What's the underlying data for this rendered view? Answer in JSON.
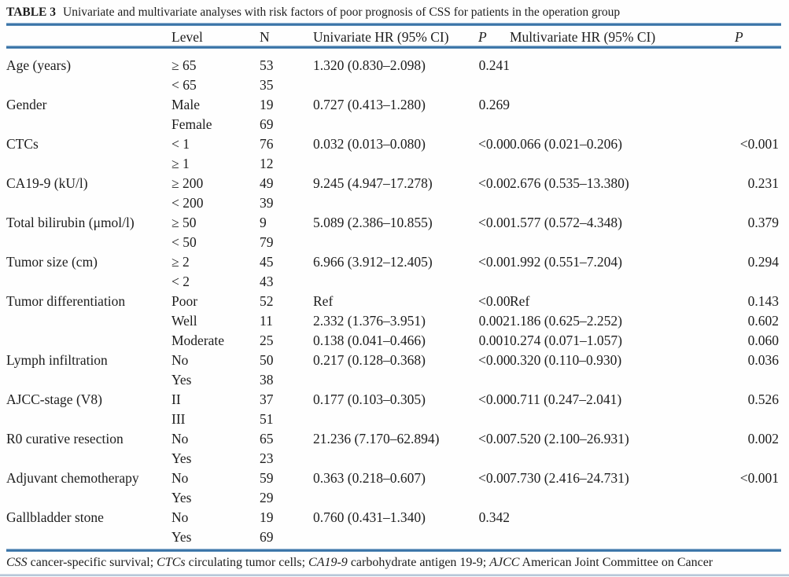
{
  "title": {
    "label": "TABLE 3",
    "text": "Univariate and multivariate analyses with risk factors of poor prognosis of CSS for patients in the operation group"
  },
  "table": {
    "headers": {
      "factor": "",
      "level": "Level",
      "n": "N",
      "uni_hr": "Univariate HR (95% CI)",
      "uni_p": "P",
      "multi_hr": "Multivariate HR (95% CI)",
      "multi_p": "P"
    },
    "rows": [
      {
        "factor": "Age (years)",
        "level": "≥ 65",
        "n": "53",
        "uni_hr": "1.320 (0.830–2.098)",
        "uni_p": "0.241",
        "multi_hr": "",
        "multi_p": ""
      },
      {
        "factor": "",
        "level": "< 65",
        "n": "35",
        "uni_hr": "",
        "uni_p": "",
        "multi_hr": "",
        "multi_p": ""
      },
      {
        "factor": "Gender",
        "level": "Male",
        "n": "19",
        "uni_hr": "0.727 (0.413–1.280)",
        "uni_p": "0.269",
        "multi_hr": "",
        "multi_p": ""
      },
      {
        "factor": "",
        "level": "Female",
        "n": "69",
        "uni_hr": "",
        "uni_p": "",
        "multi_hr": "",
        "multi_p": ""
      },
      {
        "factor": "CTCs",
        "level": "< 1",
        "n": "76",
        "uni_hr": "0.032 (0.013–0.080)",
        "uni_p": "<0.001",
        "multi_hr": "0.066 (0.021–0.206)",
        "multi_p": "<0.001"
      },
      {
        "factor": "",
        "level": "≥ 1",
        "n": "12",
        "uni_hr": "",
        "uni_p": "",
        "multi_hr": "",
        "multi_p": ""
      },
      {
        "factor": "CA19-9 (kU/l)",
        "level": "≥ 200",
        "n": "49",
        "uni_hr": "9.245 (4.947–17.278)",
        "uni_p": "<0.001",
        "multi_hr": "2.676 (0.535–13.380)",
        "multi_p": "0.231"
      },
      {
        "factor": "",
        "level": "< 200",
        "n": "39",
        "uni_hr": "",
        "uni_p": "",
        "multi_hr": "",
        "multi_p": ""
      },
      {
        "factor": "Total bilirubin (μmol/l)",
        "level": "≥ 50",
        "n": "9",
        "uni_hr": "5.089 (2.386–10.855)",
        "uni_p": "<0.001",
        "multi_hr": "1.577 (0.572–4.348)",
        "multi_p": "0.379"
      },
      {
        "factor": "",
        "level": "< 50",
        "n": "79",
        "uni_hr": "",
        "uni_p": "",
        "multi_hr": "",
        "multi_p": ""
      },
      {
        "factor": "Tumor size (cm)",
        "level": "≥ 2",
        "n": "45",
        "uni_hr": "6.966 (3.912–12.405)",
        "uni_p": "<0.001",
        "multi_hr": "1.992 (0.551–7.204)",
        "multi_p": "0.294"
      },
      {
        "factor": "",
        "level": "< 2",
        "n": "43",
        "uni_hr": "",
        "uni_p": "",
        "multi_hr": "",
        "multi_p": ""
      },
      {
        "factor": "Tumor differentiation",
        "level": "Poor",
        "n": "52",
        "uni_hr": "Ref",
        "uni_p": "<0.001",
        "multi_hr": "Ref",
        "multi_p": "0.143"
      },
      {
        "factor": "",
        "level": "Well",
        "n": "11",
        "uni_hr": "2.332 (1.376–3.951)",
        "uni_p": "0.002",
        "multi_hr": "1.186 (0.625–2.252)",
        "multi_p": "0.602"
      },
      {
        "factor": "",
        "level": "Moderate",
        "n": "25",
        "uni_hr": "0.138 (0.041–0.466)",
        "uni_p": "0.001",
        "multi_hr": "0.274 (0.071–1.057)",
        "multi_p": "0.060"
      },
      {
        "factor": "Lymph infiltration",
        "level": "No",
        "n": "50",
        "uni_hr": "0.217 (0.128–0.368)",
        "uni_p": "<0.001",
        "multi_hr": "0.320 (0.110–0.930)",
        "multi_p": "0.036"
      },
      {
        "factor": "",
        "level": "Yes",
        "n": "38",
        "uni_hr": "",
        "uni_p": "",
        "multi_hr": "",
        "multi_p": ""
      },
      {
        "factor": "AJCC-stage (V8)",
        "level": "II",
        "n": "37",
        "uni_hr": "0.177 (0.103–0.305)",
        "uni_p": "<0.001",
        "multi_hr": "0.711 (0.247–2.041)",
        "multi_p": "0.526"
      },
      {
        "factor": "",
        "level": "III",
        "n": "51",
        "uni_hr": "",
        "uni_p": "",
        "multi_hr": "",
        "multi_p": ""
      },
      {
        "factor": "R0 curative resection",
        "level": "No",
        "n": "65",
        "uni_hr": "21.236 (7.170–62.894)",
        "uni_p": "<0.001",
        "multi_hr": "7.520 (2.100–26.931)",
        "multi_p": "0.002"
      },
      {
        "factor": "",
        "level": "Yes",
        "n": "23",
        "uni_hr": "",
        "uni_p": "",
        "multi_hr": "",
        "multi_p": ""
      },
      {
        "factor": "Adjuvant chemotherapy",
        "level": "No",
        "n": "59",
        "uni_hr": "0.363 (0.218–0.607)",
        "uni_p": "<0.001",
        "multi_hr": "7.730 (2.416–24.731)",
        "multi_p": "<0.001"
      },
      {
        "factor": "",
        "level": "Yes",
        "n": "29",
        "uni_hr": "",
        "uni_p": "",
        "multi_hr": "",
        "multi_p": ""
      },
      {
        "factor": "Gallbladder stone",
        "level": "No",
        "n": "19",
        "uni_hr": "0.760 (0.431–1.340)",
        "uni_p": "0.342",
        "multi_hr": "",
        "multi_p": ""
      },
      {
        "factor": "",
        "level": "Yes",
        "n": "69",
        "uni_hr": "",
        "uni_p": "",
        "multi_hr": "",
        "multi_p": ""
      }
    ]
  },
  "footnote": {
    "segments": [
      {
        "abbr": "CSS",
        "desc": " cancer-specific survival; "
      },
      {
        "abbr": "CTCs",
        "desc": " circulating tumor cells; "
      },
      {
        "abbr": "CA19-9",
        "desc": " carbohydrate antigen 19-9; "
      },
      {
        "abbr": "AJCC",
        "desc": " American Joint Committee on Cancer"
      }
    ]
  },
  "colors": {
    "rule_blue": "#2e6ca3",
    "rule_light": "#a9c6de",
    "text": "#1d1d1d",
    "background": "#fefefe"
  }
}
